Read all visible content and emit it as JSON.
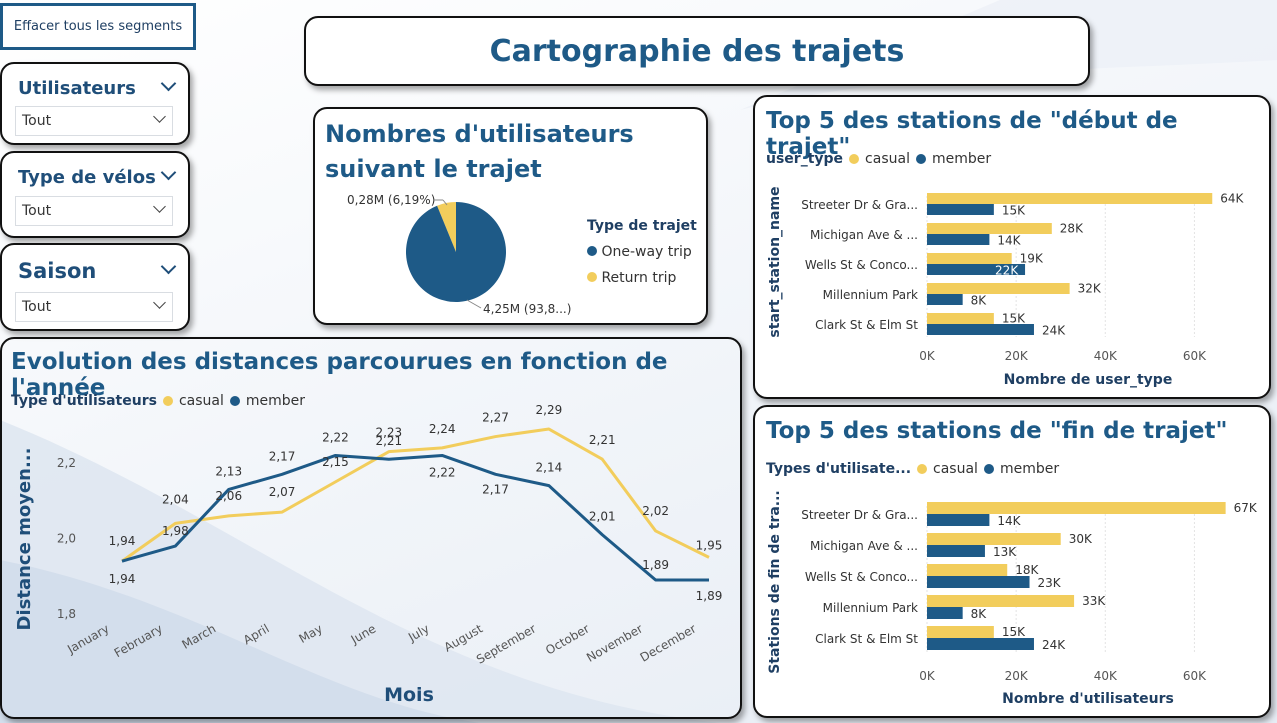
{
  "colors": {
    "casual": "#f2cd5c",
    "member": "#1e5a87",
    "title": "#1e5a87"
  },
  "clear_button": "Effacer tous les segments",
  "slicers": [
    {
      "title": "Utilisateurs",
      "value": "Tout"
    },
    {
      "title": "Type de vélos",
      "value": "Tout"
    },
    {
      "title": "Saison",
      "value": "Tout"
    }
  ],
  "page_title": "Cartographie des trajets",
  "pie": {
    "title_line1": "Nombres d'utilisateurs",
    "title_line2": "suivant le trajet",
    "legend_title": "Type de trajet",
    "label_small": "0,28M (6,19%)",
    "label_large": "4,25M (93,8...)"
  },
  "top_start": {
    "title": "Top 5 des stations de \"début de trajet\"",
    "legend_title": "user_type",
    "y_axis_title": "start_station_name",
    "x_axis_title": "Nombre de user_type"
  },
  "top_end": {
    "title": "Top 5 des stations de \"fin de trajet\"",
    "legend_title": "Types d'utilisate...",
    "y_axis_title": "Stations de fin de tra...",
    "x_axis_title": "Nombre d'utilisateurs"
  },
  "line": {
    "title": "Evolution des distances parcourues en fonction de l'année",
    "legend_title": "Type d'utilisateurs",
    "y_axis_title": "Distance moyen...",
    "x_axis_title": "Mois"
  },
  "chart_data": [
    {
      "type": "pie",
      "categories": [
        "One-way trip",
        "Return trip"
      ],
      "values": [
        4.25,
        0.28
      ],
      "unit": "M",
      "percent": [
        93.81,
        6.19
      ]
    },
    {
      "type": "bar",
      "categories": [
        "Streeter Dr & Gra...",
        "Michigan Ave & ...",
        "Wells St & Conco...",
        "Millennium Park",
        "Clark St & Elm St"
      ],
      "series": [
        {
          "name": "casual",
          "values": [
            64,
            28,
            19,
            32,
            15
          ],
          "labels": [
            "64K",
            "28K",
            "19K",
            "32K",
            "15K"
          ]
        },
        {
          "name": "member",
          "values": [
            15,
            14,
            22,
            8,
            24
          ],
          "labels": [
            "15K",
            "14K",
            "22K",
            "8K",
            "24K"
          ]
        }
      ],
      "xticks": [
        "0K",
        "20K",
        "40K",
        "60K"
      ],
      "xlim": [
        0,
        70
      ]
    },
    {
      "type": "bar",
      "categories": [
        "Streeter Dr & Gra...",
        "Michigan Ave & ...",
        "Wells St & Conco...",
        "Millennium Park",
        "Clark St & Elm St"
      ],
      "series": [
        {
          "name": "casual",
          "values": [
            67,
            30,
            18,
            33,
            15
          ],
          "labels": [
            "67K",
            "30K",
            "18K",
            "33K",
            "15K"
          ]
        },
        {
          "name": "member",
          "values": [
            14,
            13,
            23,
            8,
            24
          ],
          "labels": [
            "14K",
            "13K",
            "23K",
            "8K",
            "24K"
          ]
        }
      ],
      "xticks": [
        "0K",
        "20K",
        "40K",
        "60K"
      ],
      "xlim": [
        0,
        70
      ]
    },
    {
      "type": "line",
      "categories": [
        "January",
        "February",
        "March",
        "April",
        "May",
        "June",
        "July",
        "August",
        "September",
        "October",
        "November",
        "December"
      ],
      "series": [
        {
          "name": "casual",
          "values": [
            1.94,
            2.04,
            2.06,
            2.07,
            2.15,
            2.23,
            2.24,
            2.27,
            2.29,
            2.21,
            2.02,
            1.95
          ],
          "labels": [
            "1,94",
            "2,04",
            "2,06",
            "2,07",
            "2,15",
            "2,23",
            "2,24",
            "2,27",
            "2,29",
            "2,21",
            "2,02",
            "1,95"
          ]
        },
        {
          "name": "member",
          "values": [
            1.94,
            1.98,
            2.13,
            2.17,
            2.22,
            2.21,
            2.22,
            2.17,
            2.14,
            2.01,
            1.89,
            1.89
          ],
          "labels": [
            "1,94",
            "1,98",
            "2,13",
            "2,17",
            "2,22",
            "2,21",
            "2,22",
            "2,17",
            "2,14",
            "2,01",
            "1,89",
            "1,89"
          ]
        }
      ],
      "yticks": [
        "1,8",
        "2,0",
        "2,2"
      ],
      "ylim": [
        1.8,
        2.25
      ]
    }
  ]
}
